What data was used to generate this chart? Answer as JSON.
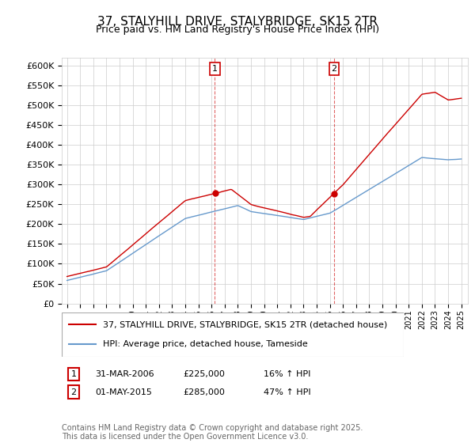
{
  "title": "37, STALYHILL DRIVE, STALYBRIDGE, SK15 2TR",
  "subtitle": "Price paid vs. HM Land Registry's House Price Index (HPI)",
  "ylim": [
    0,
    620000
  ],
  "yticks": [
    0,
    50000,
    100000,
    150000,
    200000,
    250000,
    300000,
    350000,
    400000,
    450000,
    500000,
    550000,
    600000
  ],
  "legend_label_red": "37, STALYHILL DRIVE, STALYBRIDGE, SK15 2TR (detached house)",
  "legend_label_blue": "HPI: Average price, detached house, Tameside",
  "purchase1_date": "31-MAR-2006",
  "purchase1_price": "£225,000",
  "purchase1_hpi": "16% ↑ HPI",
  "purchase2_date": "01-MAY-2015",
  "purchase2_price": "£285,000",
  "purchase2_hpi": "47% ↑ HPI",
  "purchase1_year": 2006.25,
  "purchase2_year": 2015.33,
  "red_color": "#cc0000",
  "blue_color": "#6699cc",
  "background_color": "#ffffff",
  "grid_color": "#cccccc",
  "footer": "Contains HM Land Registry data © Crown copyright and database right 2025.\nThis data is licensed under the Open Government Licence v3.0."
}
